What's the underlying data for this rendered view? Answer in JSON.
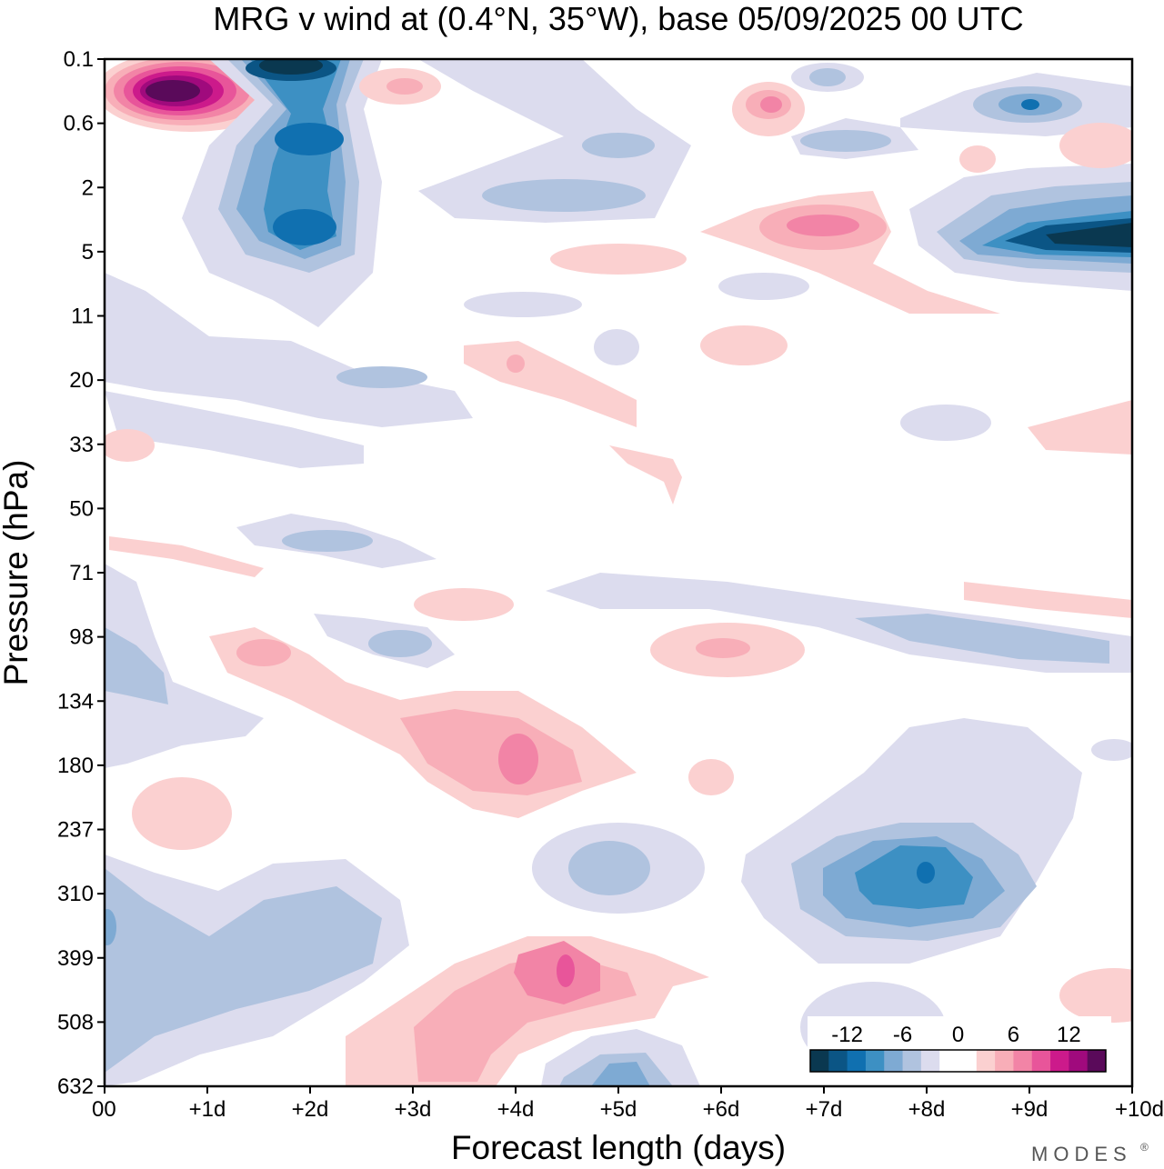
{
  "chart_data": {
    "type": "heatmap",
    "title": "MRG v wind at (0.4°N, 35°W),  base 05/09/2025  00 UTC",
    "xlabel": "Forecast length (days)",
    "ylabel": "Pressure (hPa)",
    "x_ticks": [
      "00",
      "+1d",
      "+2d",
      "+3d",
      "+4d",
      "+5d",
      "+6d",
      "+7d",
      "+8d",
      "+9d",
      "+10d"
    ],
    "x_range_days": [
      0,
      10
    ],
    "y_ticks": [
      "0.1",
      "0.6",
      "2",
      "5",
      "11",
      "20",
      "33",
      "50",
      "71",
      "98",
      "134",
      "180",
      "237",
      "310",
      "399",
      "508",
      "632"
    ],
    "colorbar": {
      "tick_labels": [
        "-12",
        "-6",
        "0",
        "6",
        "12"
      ],
      "levels": [
        -16,
        -14,
        -12,
        -10,
        -8,
        -6,
        -4,
        -2,
        0,
        2,
        4,
        6,
        8,
        10,
        12,
        14,
        16
      ],
      "colors": [
        "#0a3850",
        "#0b5585",
        "#1070b0",
        "#3d90c3",
        "#7eaad3",
        "#b0c3df",
        "#dcdcee",
        "#ffffff",
        "#ffffff",
        "#fbd0d0",
        "#f8aeb8",
        "#f284a6",
        "#e8559a",
        "#cc1a8b",
        "#a00a7d",
        "#5a0a5a"
      ]
    },
    "features": [
      {
        "x_day": 0.8,
        "pressure_hPa": 0.25,
        "value": 16,
        "desc": "strong positive"
      },
      {
        "x_day": 2.0,
        "pressure_hPa": 0.12,
        "value": -16,
        "desc": "strong negative"
      },
      {
        "x_day": 2.0,
        "pressure_hPa": 0.9,
        "value": -14,
        "desc": "negative core"
      },
      {
        "x_day": 2.0,
        "pressure_hPa": 4.0,
        "value": -12,
        "desc": "negative core"
      },
      {
        "x_day": 9.6,
        "pressure_hPa": 4.5,
        "value": -16,
        "desc": "strong negative"
      },
      {
        "x_day": 9.0,
        "pressure_hPa": 0.4,
        "value": -10,
        "desc": "negative"
      },
      {
        "x_day": 7.0,
        "pressure_hPa": 3.8,
        "value": 8,
        "desc": "positive"
      },
      {
        "x_day": 6.5,
        "pressure_hPa": 0.4,
        "value": 8,
        "desc": "positive"
      },
      {
        "x_day": 4.0,
        "pressure_hPa": 160,
        "value": 8,
        "desc": "positive"
      },
      {
        "x_day": 4.5,
        "pressure_hPa": 385,
        "value": 10,
        "desc": "positive"
      },
      {
        "x_day": 8.0,
        "pressure_hPa": 285,
        "value": -12,
        "desc": "negative core"
      },
      {
        "x_day": 5.0,
        "pressure_hPa": 632,
        "value": -8,
        "desc": "negative"
      }
    ]
  },
  "brand": "MODES",
  "brand_mark": "®"
}
